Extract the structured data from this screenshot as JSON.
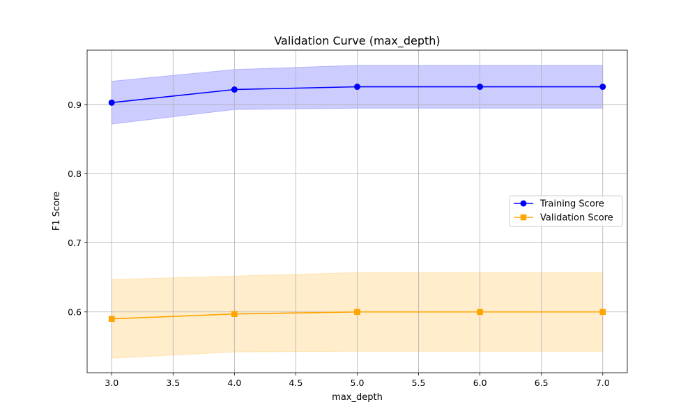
{
  "chart_data": {
    "type": "line",
    "title": "Validation Curve (max_depth)",
    "xlabel": "max_depth",
    "ylabel": "F1 Score",
    "x": [
      3,
      4,
      5,
      6,
      7
    ],
    "xlim": [
      2.8,
      7.2
    ],
    "ylim": [
      0.512,
      0.979
    ],
    "xticks": [
      3.0,
      3.5,
      4.0,
      4.5,
      5.0,
      5.5,
      6.0,
      6.5,
      7.0
    ],
    "xtick_labels": [
      "3.0",
      "3.5",
      "4.0",
      "4.5",
      "5.0",
      "5.5",
      "6.0",
      "6.5",
      "7.0"
    ],
    "yticks": [
      0.6,
      0.7,
      0.8,
      0.9
    ],
    "ytick_labels": [
      "0.6",
      "0.7",
      "0.8",
      "0.9"
    ],
    "grid": true,
    "legend_position": "center-right",
    "series": [
      {
        "name": "Training Score",
        "values": [
          0.903,
          0.922,
          0.926,
          0.926,
          0.926
        ],
        "band_lower": [
          0.872,
          0.893,
          0.895,
          0.895,
          0.895
        ],
        "band_upper": [
          0.934,
          0.951,
          0.957,
          0.957,
          0.957
        ],
        "color": "#0000ff",
        "band_color": "#ccccff",
        "marker": "circle"
      },
      {
        "name": "Validation Score",
        "values": [
          0.59,
          0.597,
          0.6,
          0.6,
          0.6
        ],
        "band_lower": [
          0.533,
          0.542,
          0.543,
          0.543,
          0.543
        ],
        "band_upper": [
          0.647,
          0.652,
          0.657,
          0.657,
          0.657
        ],
        "color": "#ffa500",
        "band_color": "#ffedcc",
        "marker": "square"
      }
    ]
  }
}
